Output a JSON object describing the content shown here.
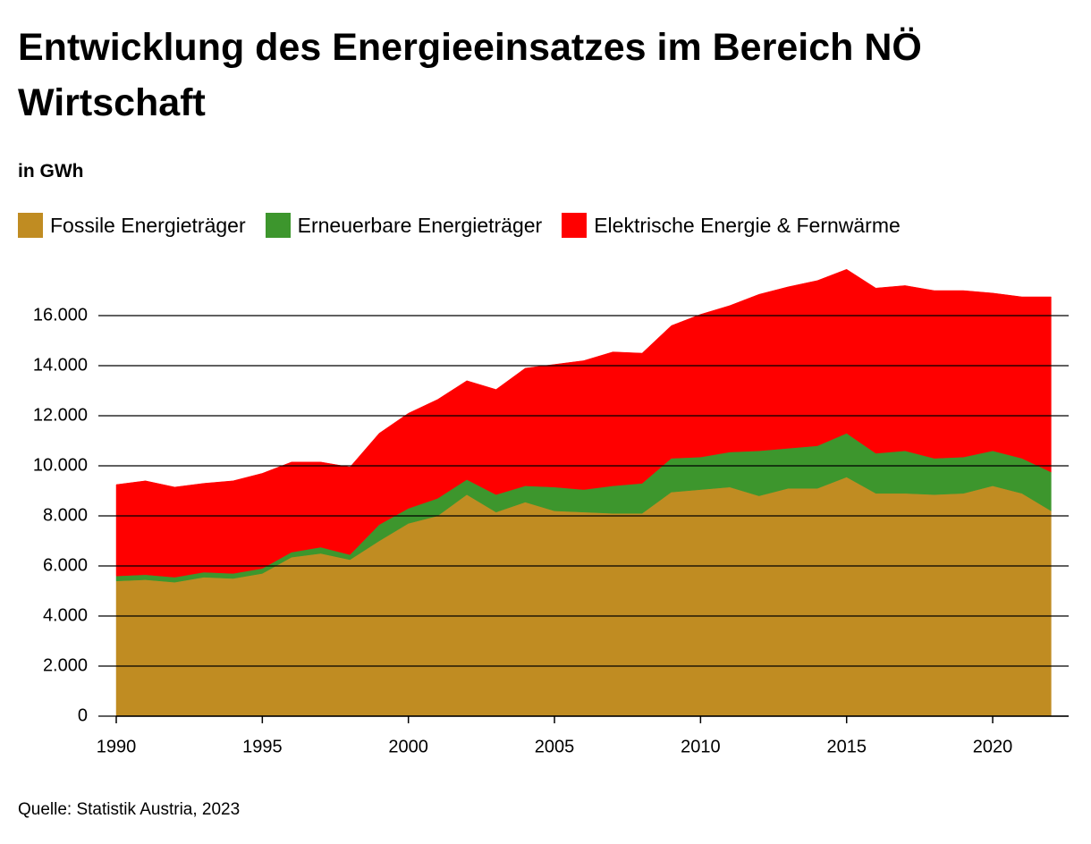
{
  "chart_data": {
    "type": "stacked-area",
    "title": "Entwicklung des Energieeinsatzes im Bereich NÖ Wirtschaft",
    "subtitle": "in GWh",
    "source": "Quelle: Statistik Austria, 2023",
    "x": [
      1990,
      1991,
      1992,
      1993,
      1994,
      1995,
      1996,
      1997,
      1998,
      1999,
      2000,
      2001,
      2002,
      2003,
      2004,
      2005,
      2006,
      2007,
      2008,
      2009,
      2010,
      2011,
      2012,
      2013,
      2014,
      2015,
      2016,
      2017,
      2018,
      2019,
      2020,
      2021,
      2022
    ],
    "series": [
      {
        "name": "Fossile Energieträger",
        "color": "#c08c22",
        "values": [
          5400,
          5450,
          5350,
          5550,
          5500,
          5700,
          6350,
          6500,
          6250,
          7000,
          7700,
          8000,
          8850,
          8150,
          8550,
          8200,
          8150,
          8100,
          8100,
          8950,
          9050,
          9150,
          8800,
          9100,
          9100,
          9550,
          8900,
          8900,
          8850,
          8900,
          9200,
          8900,
          8200
        ]
      },
      {
        "name": "Erneuerbare Energieträger",
        "color": "#3d962d",
        "values": [
          200,
          200,
          200,
          200,
          200,
          200,
          200,
          250,
          200,
          650,
          600,
          700,
          600,
          700,
          650,
          950,
          900,
          1100,
          1200,
          1350,
          1300,
          1400,
          1800,
          1600,
          1700,
          1750,
          1600,
          1700,
          1450,
          1450,
          1400,
          1400,
          1550
        ]
      },
      {
        "name": "Elektrische Energie & Fernwärme",
        "color": "#ff0000",
        "values": [
          3650,
          3750,
          3600,
          3550,
          3700,
          3800,
          3600,
          3400,
          3500,
          3650,
          3800,
          3950,
          3950,
          4200,
          4700,
          4900,
          5150,
          5350,
          5200,
          5300,
          5700,
          5850,
          6250,
          6450,
          6600,
          6550,
          6600,
          6600,
          6700,
          6650,
          6300,
          6450,
          7000
        ]
      }
    ],
    "xlim": [
      1990,
      2022.6
    ],
    "xticks": [
      1990,
      1995,
      2000,
      2005,
      2010,
      2015,
      2020
    ],
    "ylim": [
      0,
      18000
    ],
    "yticks": [
      0,
      {
        "value": 2000,
        "label": "2.000"
      },
      {
        "value": 4000,
        "label": "4.000"
      },
      {
        "value": 6000,
        "label": "6.000"
      },
      {
        "value": 8000,
        "label": "8.000"
      },
      {
        "value": 10000,
        "label": "10.000"
      },
      {
        "value": 12000,
        "label": "12.000"
      },
      {
        "value": 14000,
        "label": "14.000"
      },
      {
        "value": 16000,
        "label": "16.000"
      }
    ],
    "grid": true
  }
}
